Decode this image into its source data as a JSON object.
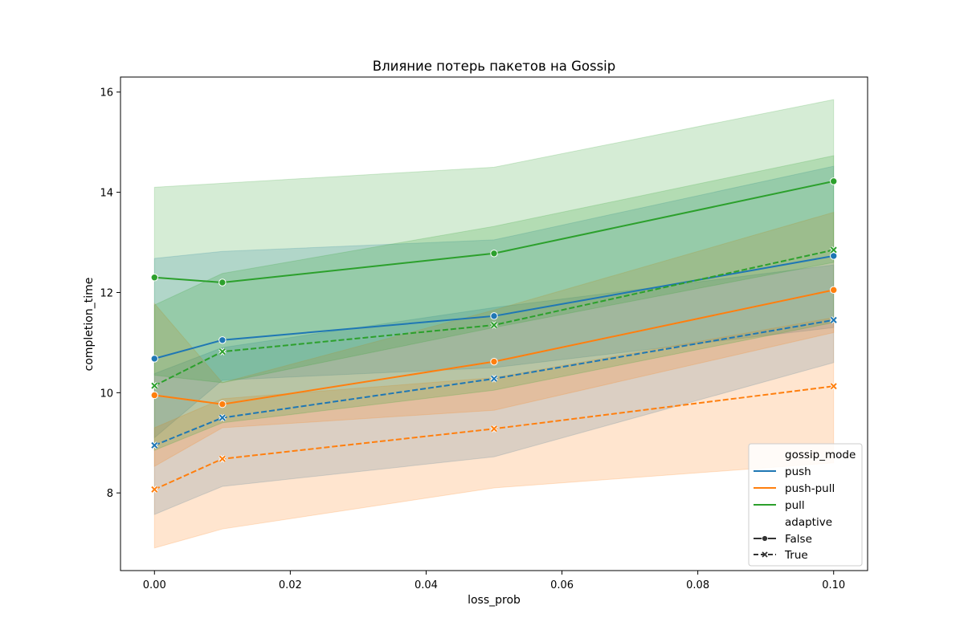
{
  "chart_data": {
    "type": "line",
    "title": "Влияние потерь пакетов на Gossip",
    "xlabel": "loss_prob",
    "ylabel": "completion_time",
    "x": [
      0.0,
      0.01,
      0.05,
      0.1
    ],
    "xlim": [
      -0.005,
      0.105
    ],
    "ylim": [
      6.45,
      16.3
    ],
    "xticks": [
      0.0,
      0.02,
      0.04,
      0.06,
      0.08,
      0.1
    ],
    "xtick_labels": [
      "0.00",
      "0.02",
      "0.04",
      "0.06",
      "0.08",
      "0.10"
    ],
    "yticks": [
      8,
      10,
      12,
      14,
      16
    ],
    "ytick_labels": [
      "8",
      "10",
      "12",
      "14",
      "16"
    ],
    "grid": false,
    "legend_placement": "lower-right",
    "legend": {
      "hue_title": "gossip_mode",
      "hue_entries": [
        {
          "name": "push",
          "color": "#1f77b4"
        },
        {
          "name": "push-pull",
          "color": "#ff7f0e"
        },
        {
          "name": "pull",
          "color": "#2ca02c"
        }
      ],
      "style_title": "adaptive",
      "style_entries": [
        {
          "name": "False",
          "marker": "circle",
          "dash": "solid"
        },
        {
          "name": "True",
          "marker": "x",
          "dash": "dashed"
        }
      ]
    },
    "series": [
      {
        "gossip_mode": "push",
        "adaptive": "False",
        "color": "#1f77b4",
        "dash": "solid",
        "marker": "circle",
        "values": [
          10.68,
          11.05,
          11.53,
          12.73
        ],
        "ci_lower": [
          9.1,
          10.25,
          10.5,
          11.3
        ],
        "ci_upper": [
          12.68,
          12.82,
          13.05,
          14.52
        ]
      },
      {
        "gossip_mode": "push",
        "adaptive": "True",
        "color": "#1f77b4",
        "dash": "dashed",
        "marker": "x",
        "values": [
          8.95,
          9.5,
          10.28,
          11.45
        ],
        "ci_lower": [
          7.57,
          8.13,
          8.72,
          10.6
        ],
        "ci_upper": [
          10.38,
          10.9,
          11.7,
          12.55
        ]
      },
      {
        "gossip_mode": "push-pull",
        "adaptive": "False",
        "color": "#ff7f0e",
        "dash": "solid",
        "marker": "circle",
        "values": [
          9.95,
          9.77,
          10.62,
          12.05
        ],
        "ci_lower": [
          8.53,
          9.3,
          9.65,
          11.2
        ],
        "ci_upper": [
          11.78,
          10.2,
          11.65,
          13.6
        ]
      },
      {
        "gossip_mode": "push-pull",
        "adaptive": "True",
        "color": "#ff7f0e",
        "dash": "dashed",
        "marker": "x",
        "values": [
          8.07,
          8.68,
          9.28,
          10.13
        ],
        "ci_lower": [
          6.9,
          7.28,
          8.1,
          8.6
        ],
        "ci_upper": [
          9.3,
          9.88,
          10.3,
          11.5
        ]
      },
      {
        "gossip_mode": "pull",
        "adaptive": "False",
        "color": "#2ca02c",
        "dash": "solid",
        "marker": "circle",
        "values": [
          12.3,
          12.2,
          12.78,
          14.22
        ],
        "ci_lower": [
          10.35,
          10.2,
          11.3,
          12.6
        ],
        "ci_upper": [
          14.1,
          14.18,
          14.5,
          15.85
        ]
      },
      {
        "gossip_mode": "pull",
        "adaptive": "True",
        "color": "#2ca02c",
        "dash": "dashed",
        "marker": "x",
        "values": [
          10.14,
          10.82,
          11.35,
          12.85
        ],
        "ci_lower": [
          8.85,
          9.4,
          10.05,
          11.4
        ],
        "ci_upper": [
          11.75,
          12.38,
          13.32,
          14.73
        ]
      }
    ]
  }
}
